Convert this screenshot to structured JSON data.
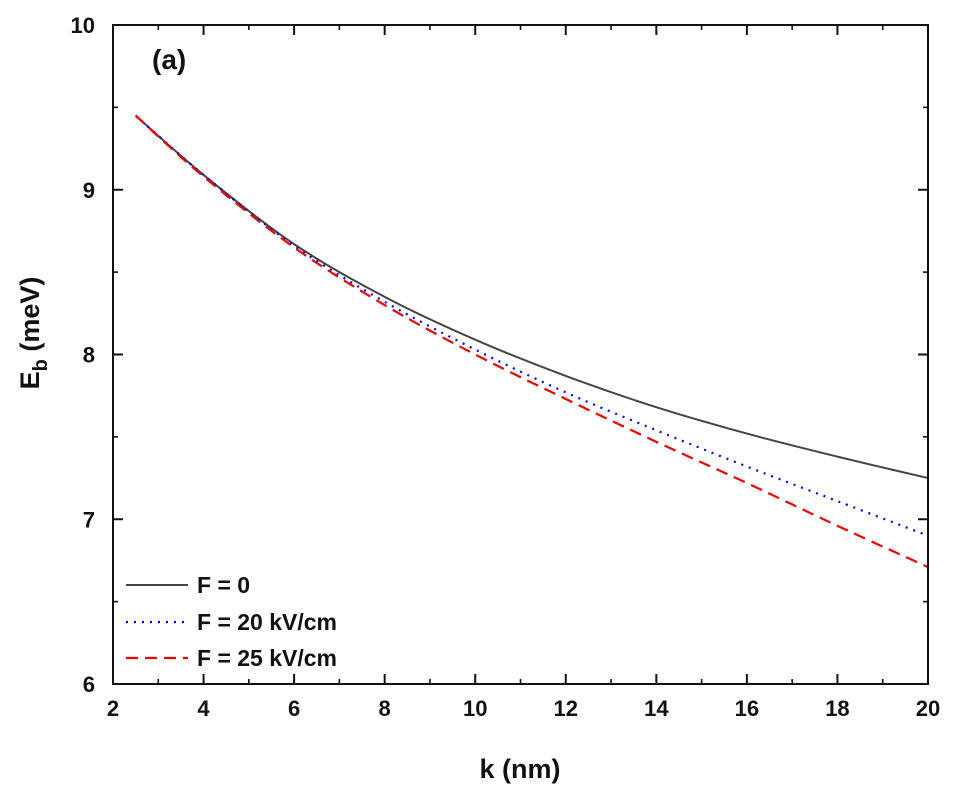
{
  "chart_data": {
    "type": "line",
    "title": "",
    "annotation": "(a)",
    "xlabel": "k (nm)",
    "ylabel": {
      "main": "E",
      "sub": "b",
      "unit": " (meV)"
    },
    "xlim": [
      2,
      20
    ],
    "ylim": [
      6,
      10
    ],
    "x_ticks": [
      2,
      4,
      6,
      8,
      10,
      12,
      14,
      16,
      18,
      20
    ],
    "y_ticks": [
      6,
      7,
      8,
      9,
      10
    ],
    "x_minor_step": 1,
    "y_minor_step": 0.5,
    "grid": false,
    "legend_position": "bottom-left",
    "x": [
      2.5,
      4,
      6,
      8,
      10,
      12,
      14,
      16,
      18,
      20
    ],
    "series": [
      {
        "name": "F = 0",
        "color": "#444444",
        "dash": "solid",
        "values": [
          9.45,
          9.09,
          8.67,
          8.35,
          8.09,
          7.87,
          7.68,
          7.52,
          7.38,
          7.25
        ]
      },
      {
        "name": "F = 20 kV/cm",
        "color": "#0000ee",
        "dash": "dotted",
        "values": [
          9.45,
          9.09,
          8.66,
          8.32,
          8.03,
          7.77,
          7.54,
          7.32,
          7.11,
          6.9
        ]
      },
      {
        "name": "F = 25 kV/cm",
        "color": "#ee0000",
        "dash": "dashed",
        "values": [
          9.45,
          9.08,
          8.65,
          8.3,
          8.0,
          7.73,
          7.47,
          7.22,
          6.96,
          6.71
        ]
      }
    ]
  }
}
